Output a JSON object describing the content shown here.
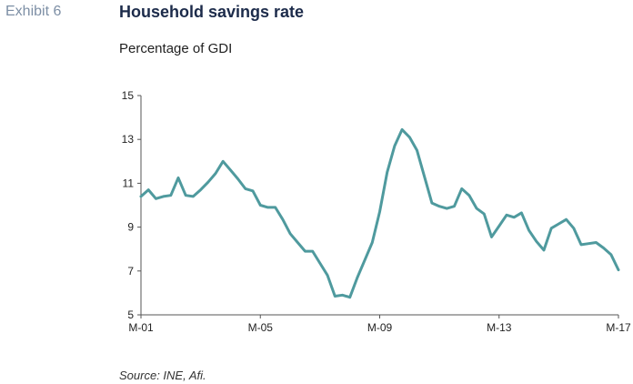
{
  "header": {
    "exhibit_label": "Exhibit 6",
    "title": "Household savings rate"
  },
  "colors": {
    "line": "#4f9a9e",
    "axis": "#555555",
    "title": "#1c2b4a",
    "exhibit": "#7d8fa5"
  },
  "chart_data": {
    "type": "line",
    "title": "Household savings rate",
    "subtitle": "Percentage of GDI",
    "xlabel": "",
    "ylabel": "",
    "ylim": [
      5,
      15
    ],
    "yticks": [
      5,
      7,
      9,
      11,
      13,
      15
    ],
    "xlim": [
      2001.0,
      2017.0
    ],
    "xticks": [
      {
        "value": 2001.0,
        "label": "M-01"
      },
      {
        "value": 2005.0,
        "label": "M-05"
      },
      {
        "value": 2009.0,
        "label": "M-09"
      },
      {
        "value": 2013.0,
        "label": "M-13"
      },
      {
        "value": 2017.0,
        "label": "M-17"
      }
    ],
    "grid": false,
    "legend": "none",
    "series": [
      {
        "points": [
          [
            2001.0,
            10.4
          ],
          [
            2001.25,
            10.7
          ],
          [
            2001.5,
            10.3
          ],
          [
            2001.75,
            10.4
          ],
          [
            2002.0,
            10.45
          ],
          [
            2002.25,
            11.25
          ],
          [
            2002.5,
            10.45
          ],
          [
            2002.75,
            10.4
          ],
          [
            2003.0,
            10.7
          ],
          [
            2003.25,
            11.05
          ],
          [
            2003.5,
            11.45
          ],
          [
            2003.75,
            12.0
          ],
          [
            2004.0,
            11.6
          ],
          [
            2004.25,
            11.2
          ],
          [
            2004.5,
            10.75
          ],
          [
            2004.75,
            10.65
          ],
          [
            2005.0,
            10.0
          ],
          [
            2005.25,
            9.9
          ],
          [
            2005.5,
            9.9
          ],
          [
            2005.75,
            9.35
          ],
          [
            2006.0,
            8.7
          ],
          [
            2006.25,
            8.3
          ],
          [
            2006.5,
            7.9
          ],
          [
            2006.75,
            7.9
          ],
          [
            2007.0,
            7.35
          ],
          [
            2007.25,
            6.8
          ],
          [
            2007.5,
            5.85
          ],
          [
            2007.75,
            5.9
          ],
          [
            2008.0,
            5.8
          ],
          [
            2008.25,
            6.7
          ],
          [
            2008.5,
            7.5
          ],
          [
            2008.75,
            8.3
          ],
          [
            2009.0,
            9.7
          ],
          [
            2009.25,
            11.5
          ],
          [
            2009.5,
            12.7
          ],
          [
            2009.75,
            13.45
          ],
          [
            2010.0,
            13.1
          ],
          [
            2010.25,
            12.5
          ],
          [
            2010.5,
            11.3
          ],
          [
            2010.75,
            10.1
          ],
          [
            2011.0,
            9.95
          ],
          [
            2011.25,
            9.85
          ],
          [
            2011.5,
            9.95
          ],
          [
            2011.75,
            10.75
          ],
          [
            2012.0,
            10.45
          ],
          [
            2012.25,
            9.85
          ],
          [
            2012.5,
            9.6
          ],
          [
            2012.75,
            8.55
          ],
          [
            2013.0,
            9.05
          ],
          [
            2013.25,
            9.55
          ],
          [
            2013.5,
            9.45
          ],
          [
            2013.75,
            9.65
          ],
          [
            2014.0,
            8.85
          ],
          [
            2014.25,
            8.35
          ],
          [
            2014.5,
            7.95
          ],
          [
            2014.75,
            8.95
          ],
          [
            2015.0,
            9.15
          ],
          [
            2015.25,
            9.35
          ],
          [
            2015.5,
            8.95
          ],
          [
            2015.75,
            8.2
          ],
          [
            2016.0,
            8.25
          ],
          [
            2016.25,
            8.3
          ],
          [
            2016.5,
            8.05
          ],
          [
            2016.75,
            7.75
          ],
          [
            2017.0,
            7.05
          ]
        ]
      }
    ]
  },
  "footer": {
    "source": "Source: INE, Afi."
  }
}
